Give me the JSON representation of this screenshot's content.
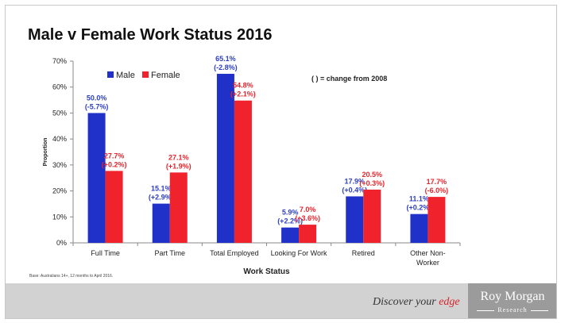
{
  "title": "Male v Female Work Status 2016",
  "note": "( ) = change from 2008",
  "base": "Base: Australians 14+, 12 months to April 2016.",
  "footer": {
    "tagline_prefix": "Discover your ",
    "tagline_accent": "edge",
    "brand": "Roy Morgan",
    "brand_sub": "Research"
  },
  "colors": {
    "male": "#1f31c8",
    "female": "#f0232d",
    "male_label": "#2e3fc4",
    "female_label": "#e8242c"
  },
  "chart_data": {
    "type": "bar",
    "xlabel": "Work Status",
    "ylabel": "Proportion",
    "ylim": [
      0,
      70
    ],
    "yticks": [
      "0%",
      "10%",
      "20%",
      "30%",
      "40%",
      "50%",
      "60%",
      "70%"
    ],
    "grid": false,
    "legend": "top-left",
    "categories": [
      "Full Time",
      "Part Time",
      "Total Employed",
      "Looking For Work",
      "Retired",
      "Other Non-Worker"
    ],
    "category_lines": [
      [
        "Full Time"
      ],
      [
        "Part Time"
      ],
      [
        "Total Employed"
      ],
      [
        "Looking For Work"
      ],
      [
        "Retired"
      ],
      [
        "Other Non-",
        "Worker"
      ]
    ],
    "series": [
      {
        "name": "Male",
        "values": [
          50.0,
          15.1,
          65.1,
          5.9,
          17.9,
          11.1
        ],
        "labels": [
          "50.0%",
          "15.1%",
          "65.1%",
          "5.9%",
          "17.9%",
          "11.1%"
        ],
        "changes": [
          "(-5.7%)",
          "(+2.9%)",
          "(-2.8%)",
          "(+2.2%)",
          "(+0.4%)",
          "(+0.2%)"
        ]
      },
      {
        "name": "Female",
        "values": [
          27.7,
          27.1,
          54.8,
          7.0,
          20.5,
          17.7
        ],
        "labels": [
          "27.7%",
          "27.1%",
          "54.8%",
          "7.0%",
          "20.5%",
          "17.7%"
        ],
        "changes": [
          "(+0.2%)",
          "(+1.9%)",
          "(+2.1%)",
          "(+3.6%)",
          "(+0.3%)",
          "(-6.0%)"
        ]
      }
    ]
  }
}
